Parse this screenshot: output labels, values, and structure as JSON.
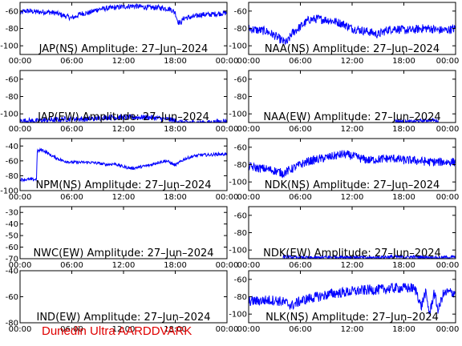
{
  "footer": "Dunedin Ultra AARDDVARK",
  "x_ticks": [
    "00:00",
    "06:00",
    "12:00",
    "18:00",
    "00:00"
  ],
  "chart_data": [
    {
      "type": "line",
      "title": "JAP(NS) Amplitude: 27–Jun–2024",
      "xlim": [
        0,
        24
      ],
      "ylim": [
        -110,
        -50
      ],
      "y_ticks": [
        -100,
        -80,
        -60
      ],
      "series": [
        {
          "color": "#0000ff",
          "band": 3,
          "x": [
            0,
            0.5,
            1,
            2,
            3,
            4,
            5,
            6,
            6.5,
            7,
            8,
            9,
            10,
            11,
            12,
            13,
            14,
            15,
            16,
            17,
            17.5,
            18,
            18.3,
            18.6,
            19,
            20,
            21,
            22,
            23,
            24
          ],
          "y": [
            -63,
            -60,
            -60,
            -61,
            -61,
            -62,
            -65,
            -68,
            -66,
            -63,
            -62,
            -58,
            -57,
            -56,
            -55,
            -54,
            -55,
            -56,
            -56,
            -57,
            -58,
            -62,
            -72,
            -74,
            -68,
            -67,
            -64,
            -64,
            -63,
            -62
          ]
        }
      ]
    },
    {
      "type": "line",
      "title": "NAA(NS) Amplitude: 27–Jun–2024",
      "xlim": [
        0,
        24
      ],
      "ylim": [
        -110,
        -50
      ],
      "y_ticks": [
        -100,
        -80,
        -60
      ],
      "series": [
        {
          "color": "#0000ff",
          "band": 5,
          "x": [
            0,
            1,
            2,
            3,
            4,
            4.5,
            5,
            6,
            7,
            8,
            9,
            10,
            11,
            12,
            13,
            14,
            15,
            16,
            17,
            18,
            19,
            20,
            21,
            22,
            23,
            24
          ],
          "y": [
            -80,
            -82,
            -83,
            -88,
            -95,
            -96,
            -86,
            -78,
            -70,
            -69,
            -70,
            -72,
            -75,
            -80,
            -82,
            -84,
            -87,
            -82,
            -80,
            -82,
            -82,
            -80,
            -80,
            -82,
            -82,
            -80
          ]
        }
      ]
    },
    {
      "type": "line",
      "title": "JAP(EW) Amplitude: 27–Jun–2024",
      "xlim": [
        0,
        24
      ],
      "ylim": [
        -110,
        -50
      ],
      "y_ticks": [
        -100,
        -80,
        -60
      ],
      "series": [
        {
          "color": "#0000ff",
          "band": 3,
          "x": [
            0,
            1,
            2,
            3,
            4,
            5,
            6,
            7,
            8,
            9,
            10,
            11,
            12,
            13,
            14,
            15,
            16,
            17,
            18,
            19,
            20,
            21,
            22,
            23,
            24
          ],
          "y": [
            -108,
            -108,
            -108,
            -107,
            -107,
            -106,
            -106,
            -106,
            -106,
            -105,
            -104,
            -104,
            -104,
            -104,
            -104,
            -104,
            -105,
            -106,
            -108,
            -110,
            -110,
            -110,
            -110,
            -109,
            -108
          ]
        }
      ]
    },
    {
      "type": "line",
      "title": "NAA(EW) Amplitude: 27–Jun–2024",
      "xlim": [
        0,
        24
      ],
      "ylim": [
        -110,
        -50
      ],
      "y_ticks": [
        -100,
        -80,
        -60
      ],
      "series": [
        {
          "color": "#0000ff",
          "band": 2,
          "x": [
            17,
            18,
            19,
            20,
            21,
            22
          ],
          "y": [
            -108,
            -109,
            -109,
            -108,
            -107,
            -108
          ]
        }
      ]
    },
    {
      "type": "line",
      "title": "NPM(NS) Amplitude: 27–Jun–2024",
      "xlim": [
        0,
        24
      ],
      "ylim": [
        -100,
        -30
      ],
      "y_ticks": [
        -100,
        -80,
        -60,
        -40
      ],
      "series": [
        {
          "color": "#0000ff",
          "band": 2,
          "x": [
            0,
            1.5,
            1.9,
            2,
            2.5,
            3,
            3.5,
            4,
            5,
            6,
            7,
            8,
            9,
            10,
            11,
            12,
            13,
            14,
            15,
            16,
            17,
            18,
            19,
            20,
            21,
            22,
            23,
            24
          ],
          "y": [
            -85,
            -85,
            -85,
            -47,
            -45,
            -48,
            -52,
            -55,
            -60,
            -62,
            -62,
            -62,
            -63,
            -65,
            -64,
            -68,
            -70,
            -68,
            -66,
            -62,
            -60,
            -66,
            -58,
            -54,
            -52,
            -52,
            -51,
            -51
          ]
        }
      ]
    },
    {
      "type": "line",
      "title": "NDK(NS) Amplitude: 27–Jun–2024",
      "xlim": [
        0,
        24
      ],
      "ylim": [
        -110,
        -50
      ],
      "y_ticks": [
        -100,
        -80,
        -60
      ],
      "series": [
        {
          "color": "#0000ff",
          "band": 5,
          "x": [
            0,
            1,
            2,
            3,
            4,
            5,
            6,
            7,
            8,
            9,
            10,
            11,
            12,
            13,
            14,
            15,
            16,
            17,
            18,
            19,
            20,
            21,
            22,
            23,
            24
          ],
          "y": [
            -82,
            -84,
            -85,
            -87,
            -90,
            -85,
            -80,
            -76,
            -74,
            -72,
            -70,
            -68,
            -70,
            -73,
            -75,
            -74,
            -73,
            -73,
            -75,
            -75,
            -76,
            -77,
            -77,
            -77,
            -77
          ]
        }
      ]
    },
    {
      "type": "line",
      "title": "NWC(EW) Amplitude: 27–Jun–2024",
      "xlim": [
        0,
        24
      ],
      "ylim": [
        -70,
        -25
      ],
      "y_ticks": [
        -70,
        -60,
        -50,
        -40,
        -30
      ],
      "series": []
    },
    {
      "type": "line",
      "title": "NDK(EW) Amplitude: 27–Jun–2024",
      "xlim": [
        0,
        24
      ],
      "ylim": [
        -110,
        -50
      ],
      "y_ticks": [
        -100,
        -80,
        -60
      ],
      "series": [
        {
          "color": "#0000ff",
          "band": 2,
          "x": [
            4,
            6,
            8,
            10,
            12,
            14,
            16,
            18,
            20,
            22,
            24
          ],
          "y": [
            -108,
            -109,
            -109,
            -108,
            -108,
            -109,
            -108,
            -108,
            -108,
            -109,
            -108
          ]
        }
      ]
    },
    {
      "type": "line",
      "title": "IND(EW) Amplitude: 27–Jun–2024",
      "xlim": [
        0,
        24
      ],
      "ylim": [
        -80,
        -40
      ],
      "y_ticks": [
        -80,
        -60,
        -40
      ],
      "series": []
    },
    {
      "type": "line",
      "title": "NLK(NS) Amplitude: 27–Jun–2024",
      "xlim": [
        0,
        24
      ],
      "ylim": [
        -110,
        -50
      ],
      "y_ticks": [
        -100,
        -80,
        -60
      ],
      "series": [
        {
          "color": "#0000ff",
          "band": 6,
          "x": [
            0,
            1,
            2,
            3,
            4,
            5,
            6,
            7,
            8,
            9,
            10,
            11,
            12,
            13,
            14,
            15,
            16,
            17,
            18,
            19,
            19.5,
            20,
            20.5,
            21,
            21.5,
            22,
            22.5,
            23,
            24
          ],
          "y": [
            -85,
            -85,
            -84,
            -84,
            -86,
            -90,
            -85,
            -82,
            -80,
            -78,
            -76,
            -75,
            -74,
            -73,
            -72,
            -72,
            -71,
            -70,
            -70,
            -70,
            -74,
            -92,
            -75,
            -100,
            -75,
            -96,
            -78,
            -75,
            -75
          ]
        }
      ]
    }
  ]
}
